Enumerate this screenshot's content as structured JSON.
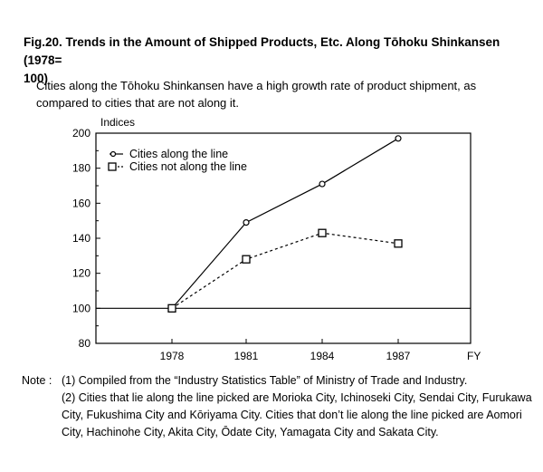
{
  "figure": {
    "number": "Fig.20.",
    "title": "Trends in the Amount of Shipped Products, Etc. Along Tōhoku Shinkansen (1978=",
    "title_cont": "100)",
    "subtitle": "Cities along the Tōhoku Shinkansen have a high growth rate of product shipment, as compared to cities that are not along it."
  },
  "chart_data": {
    "type": "line",
    "ylabel": "Indices",
    "xlabel": "FY",
    "categories": [
      "1978",
      "1981",
      "1984",
      "1987"
    ],
    "ylim": [
      80,
      200
    ],
    "yticks": [
      80,
      100,
      120,
      140,
      160,
      180,
      200
    ],
    "reference_line": 100,
    "legend_position": "top-left",
    "series": [
      {
        "name": "Cities along the line",
        "values": [
          100,
          149,
          171,
          197
        ],
        "marker": "circle",
        "line": "solid"
      },
      {
        "name": "Cities not along the line",
        "values": [
          100,
          128,
          143,
          137
        ],
        "marker": "square",
        "line": "dashed"
      }
    ]
  },
  "notes": {
    "label": "Note :",
    "item1": "(1) Compiled from the “Industry Statistics Table” of Ministry of Trade and Industry.",
    "item2": "(2) Cities that lie along the line picked are Morioka City, Ichinoseki City, Sendai City, Furukawa City, Fukushima City and Kōriyama City. Cities that don’t lie along the line picked are Aomori City, Hachinohe City, Akita City, Ōdate City, Yamagata City and Sakata City."
  }
}
